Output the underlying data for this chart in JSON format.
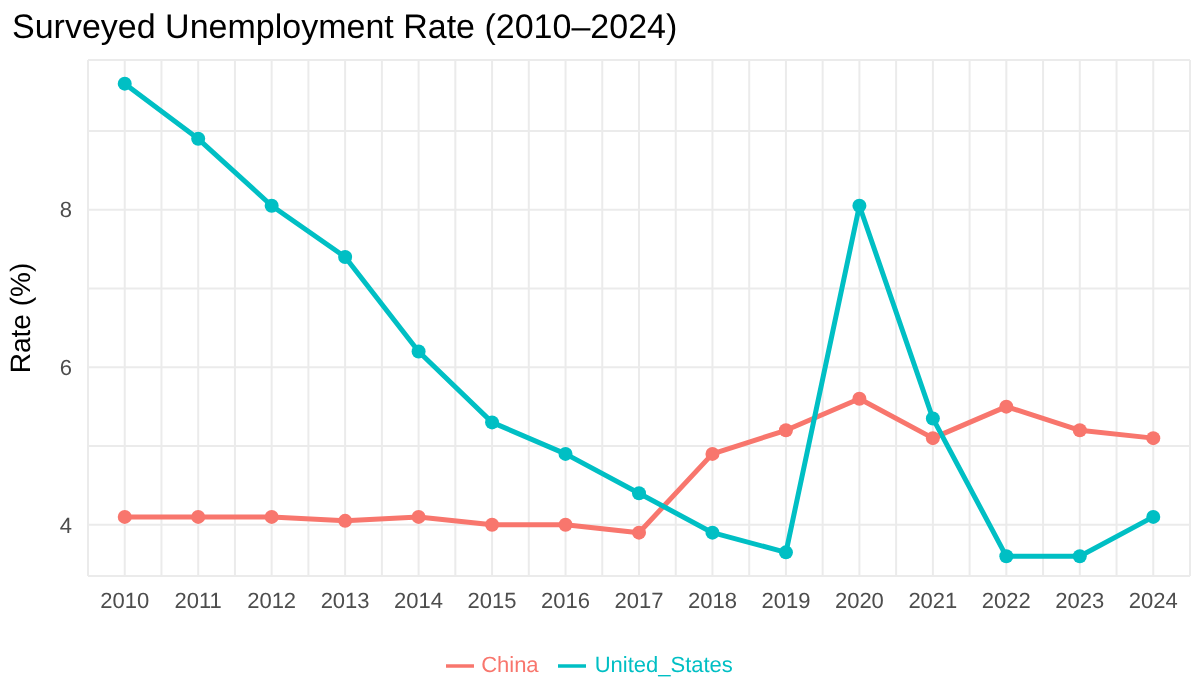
{
  "chart_data": {
    "type": "line",
    "title": "Surveyed Unemployment Rate (2010–2024)",
    "ylabel": "Rate (%)",
    "x": [
      2010,
      2011,
      2012,
      2013,
      2014,
      2015,
      2016,
      2017,
      2018,
      2019,
      2020,
      2021,
      2022,
      2023,
      2024
    ],
    "series": [
      {
        "name": "China",
        "color": "#f8766d",
        "values": [
          4.1,
          4.1,
          4.1,
          4.05,
          4.1,
          4.0,
          4.0,
          3.9,
          4.9,
          5.2,
          5.6,
          5.1,
          5.5,
          5.2,
          5.1
        ]
      },
      {
        "name": "United_States",
        "color": "#00bfc4",
        "values": [
          9.6,
          8.9,
          8.05,
          7.4,
          6.2,
          5.3,
          4.9,
          4.4,
          3.9,
          3.65,
          8.05,
          5.35,
          3.6,
          3.6,
          4.1
        ]
      }
    ],
    "xlim": [
      2009.5,
      2024.5
    ],
    "xticks": [
      2010,
      2011,
      2012,
      2013,
      2014,
      2015,
      2016,
      2017,
      2018,
      2019,
      2020,
      2021,
      2022,
      2023,
      2024,
      {
        "value": 2009.5,
        "label": null
      },
      {
        "value": 2010.5,
        "label": null
      },
      {
        "value": 2011.5,
        "label": null
      },
      {
        "value": 2012.5,
        "label": null
      },
      {
        "value": 2013.5,
        "label": null
      },
      {
        "value": 2014.5,
        "label": null
      },
      {
        "value": 2015.5,
        "label": null
      },
      {
        "value": 2016.5,
        "label": null
      },
      {
        "value": 2017.5,
        "label": null
      },
      {
        "value": 2018.5,
        "label": null
      },
      {
        "value": 2019.5,
        "label": null
      },
      {
        "value": 2020.5,
        "label": null
      },
      {
        "value": 2021.5,
        "label": null
      },
      {
        "value": 2022.5,
        "label": null
      },
      {
        "value": 2023.5,
        "label": null
      }
    ],
    "ylim": [
      3.35,
      9.9
    ],
    "yticks": [
      4,
      6,
      8,
      {
        "value": 5,
        "label": null
      },
      {
        "value": 7,
        "label": null
      },
      {
        "value": 9,
        "label": null
      }
    ],
    "grid": true,
    "legend": "bottom",
    "marker": "circle",
    "line_style": "solid"
  }
}
